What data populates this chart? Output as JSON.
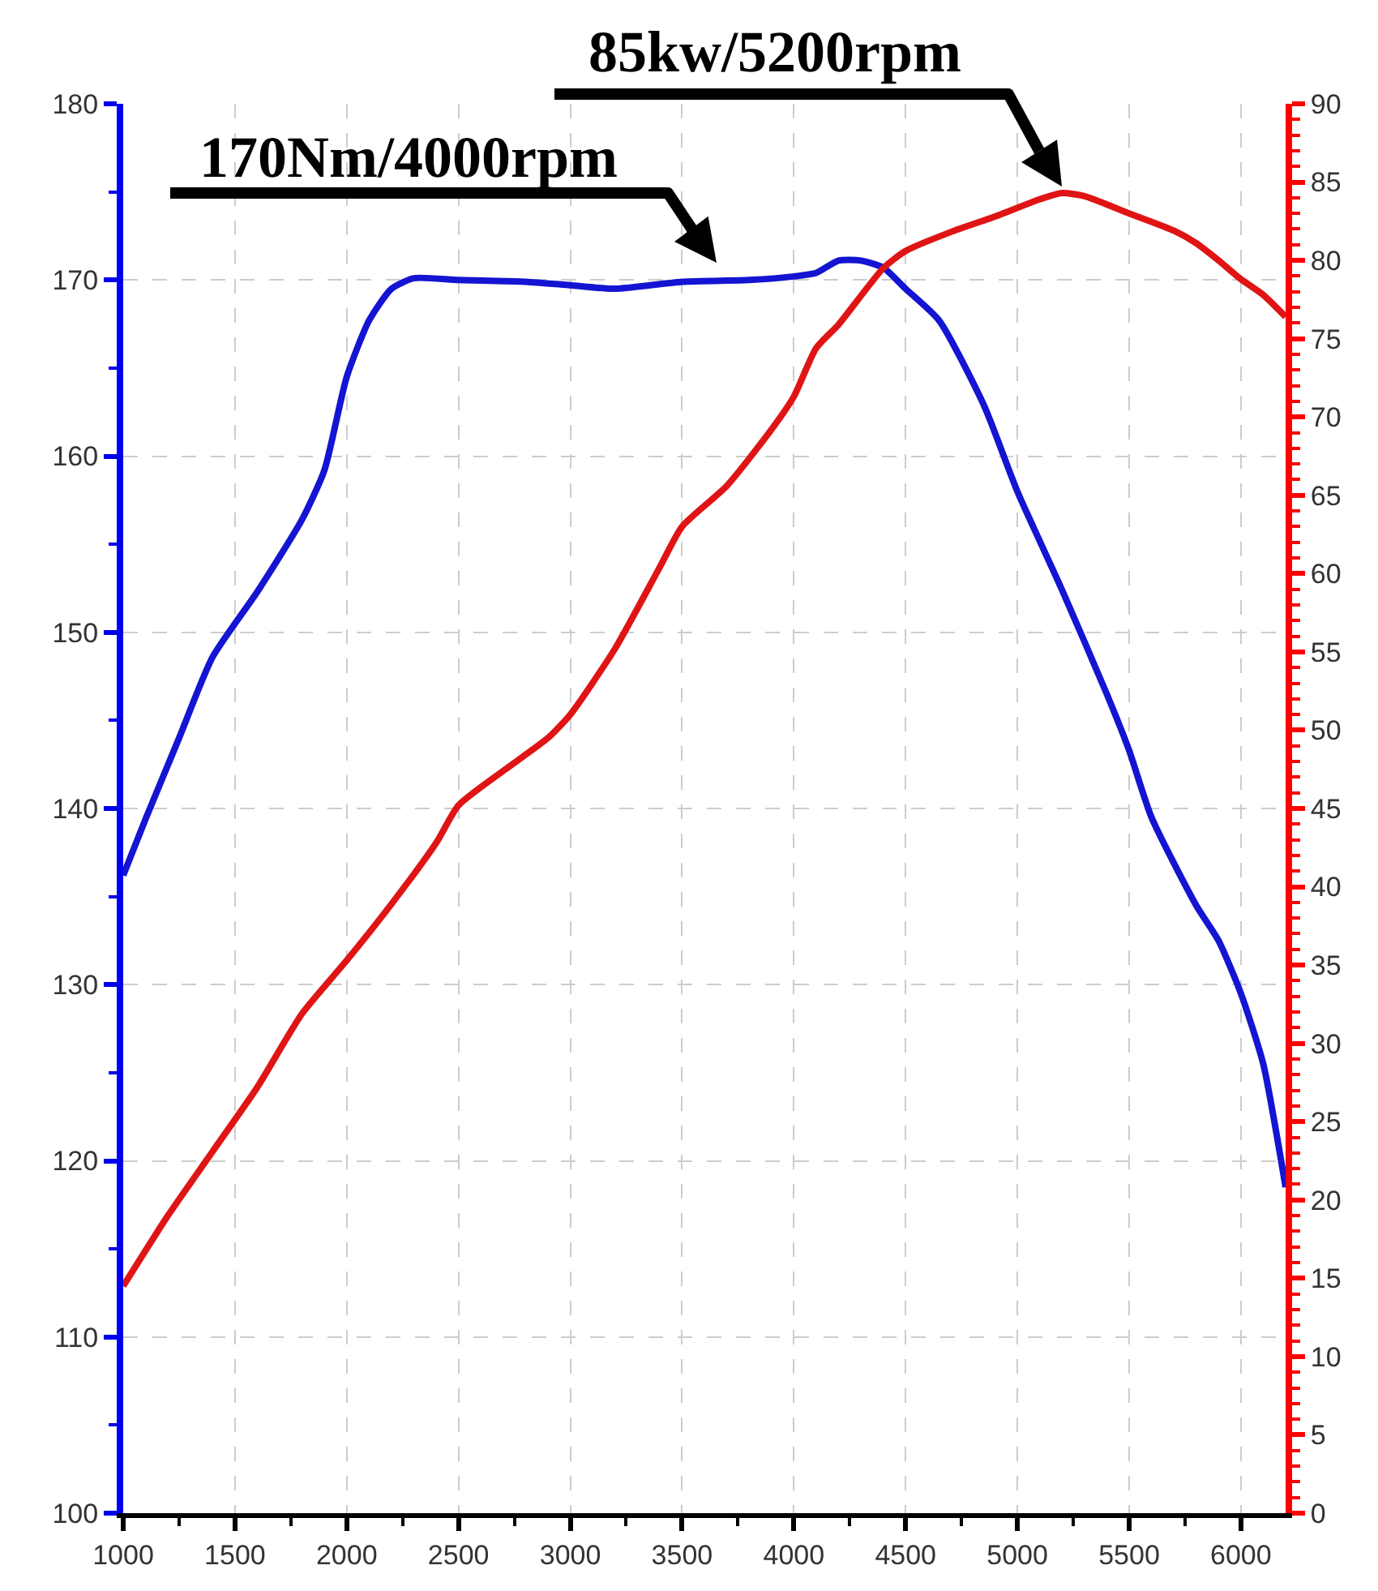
{
  "chart_data": {
    "type": "line",
    "xlim": [
      1000,
      6200
    ],
    "xticks": [
      1000,
      1500,
      2000,
      2500,
      3000,
      3500,
      4000,
      4500,
      5000,
      5500,
      6000
    ],
    "ylim": [
      100,
      180
    ],
    "yticks": [
      100,
      110,
      120,
      130,
      140,
      150,
      160,
      170,
      180
    ],
    "y2lim": [
      0,
      90
    ],
    "y2ticks": [
      0,
      5,
      10,
      15,
      20,
      25,
      30,
      35,
      40,
      45,
      50,
      55,
      60,
      65,
      70,
      75,
      80,
      85,
      90
    ],
    "grid": true,
    "series": [
      {
        "color": "#1414d2",
        "x": [
          1000,
          1100,
          1250,
          1400,
          1600,
          1800,
          1900,
          2000,
          2100,
          2200,
          2300,
          2500,
          2800,
          3000,
          3200,
          3500,
          3800,
          4000,
          4100,
          4200,
          4300,
          4400,
          4500,
          4650,
          4850,
          5000,
          5200,
          5400,
          5500,
          5600,
          5800,
          5900,
          6000,
          6100,
          6200
        ],
        "values": [
          136.2,
          139.4,
          144,
          148.6,
          152.3,
          156.4,
          159.2,
          164.5,
          167.7,
          169.5,
          170.1,
          170,
          169.9,
          169.7,
          169.5,
          169.9,
          170,
          170.2,
          170.4,
          171.1,
          171.1,
          170.7,
          169.5,
          167.7,
          162.9,
          158,
          152.4,
          146.5,
          143.3,
          139.5,
          134.5,
          132.5,
          129.5,
          125.5,
          118.5
        ]
      },
      {
        "color": "#e01414",
        "axis": "y2",
        "x": [
          1000,
          1200,
          1400,
          1600,
          1800,
          2000,
          2200,
          2400,
          2500,
          2700,
          2900,
          3000,
          3200,
          3400,
          3500,
          3700,
          3900,
          4000,
          4100,
          4200,
          4400,
          4500,
          4700,
          4900,
          5100,
          5200,
          5300,
          5500,
          5700,
          5800,
          5900,
          6000,
          6100,
          6200
        ],
        "values": [
          14.5,
          19,
          23.1,
          27.2,
          31.9,
          35.3,
          38.9,
          42.8,
          45.2,
          47.4,
          49.5,
          51,
          55.2,
          60.4,
          63,
          65.6,
          69.2,
          71.3,
          74.4,
          75.9,
          79.5,
          80.6,
          81.8,
          82.8,
          83.9,
          84.3,
          84.1,
          83,
          81.9,
          81.1,
          80,
          78.8,
          77.8,
          76.4
        ]
      }
    ],
    "annotations": [
      "170Nm/4000rpm",
      "85kw/5200rpm"
    ]
  }
}
